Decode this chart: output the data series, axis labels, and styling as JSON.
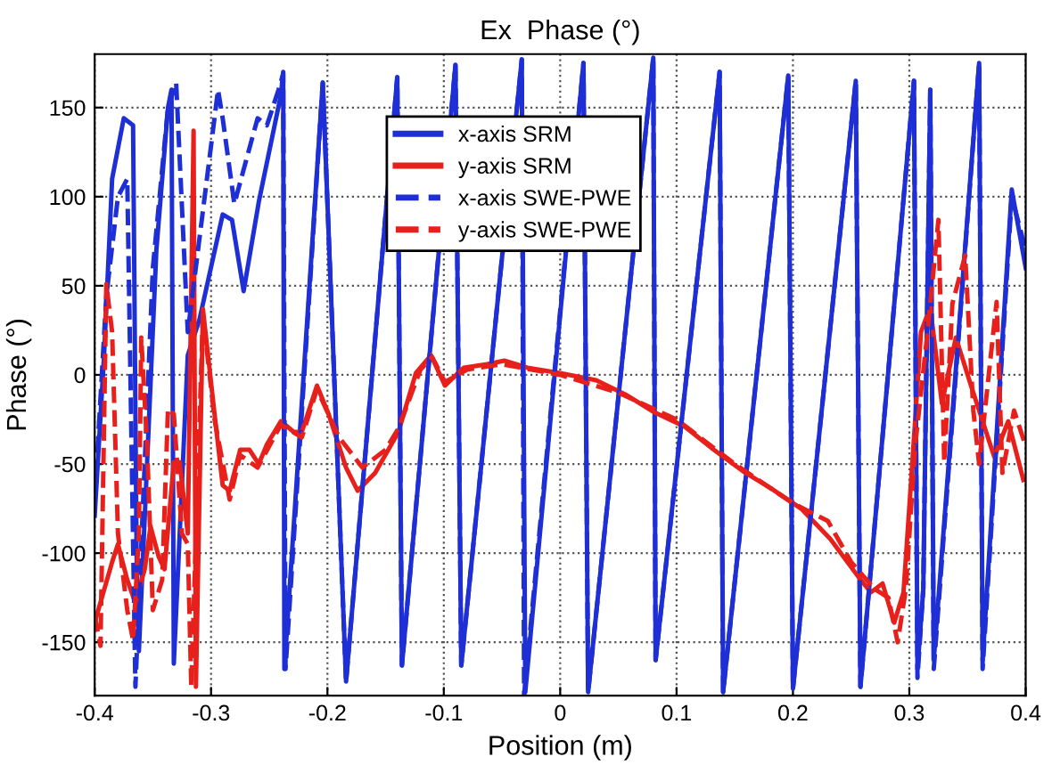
{
  "chart_data": {
    "type": "line",
    "title": "Ex  Phase (°)",
    "xlabel": "Position (m)",
    "ylabel": "Phase (°)",
    "xlim": [
      -0.4,
      0.4
    ],
    "ylim": [
      -180,
      180
    ],
    "xticks": [
      -0.4,
      -0.3,
      -0.2,
      -0.1,
      0,
      0.1,
      0.2,
      0.3,
      0.4
    ],
    "yticks": [
      -150,
      -100,
      -50,
      0,
      50,
      100,
      150
    ],
    "grid": true,
    "legend": "top",
    "marker": "none",
    "series": [
      {
        "name": "x-axis SRM",
        "color": "#1f2fd6",
        "line_style": "solid",
        "x": [
          -0.4,
          -0.392,
          -0.385,
          -0.375,
          -0.367,
          -0.364,
          -0.362,
          -0.347,
          -0.337,
          -0.334,
          -0.332,
          -0.32,
          -0.31,
          -0.29,
          -0.282,
          -0.272,
          -0.259,
          -0.24,
          -0.238,
          -0.237,
          -0.204,
          -0.184,
          -0.14,
          -0.136,
          -0.09,
          -0.085,
          -0.033,
          -0.03,
          0.02,
          0.024,
          0.08,
          0.082,
          0.137,
          0.14,
          0.196,
          0.2,
          0.254,
          0.258,
          0.304,
          0.307,
          0.312,
          0.318,
          0.321,
          0.36,
          0.363,
          0.388,
          0.4
        ],
        "values": [
          -79,
          10,
          110,
          144,
          140,
          -100,
          -155,
          70,
          150,
          160,
          -162,
          11,
          31,
          90,
          87,
          47,
          97,
          157,
          170,
          -165,
          164,
          -172,
          167,
          -163,
          174,
          -163,
          177,
          -178,
          175,
          -178,
          178,
          -160,
          170,
          -178,
          168,
          -176,
          165,
          -175,
          165,
          -165,
          -120,
          160,
          -160,
          175,
          -160,
          104,
          60
        ]
      },
      {
        "name": "y-axis SRM",
        "color": "#e8201c",
        "line_style": "solid",
        "x": [
          -0.4,
          -0.385,
          -0.38,
          -0.372,
          -0.365,
          -0.357,
          -0.352,
          -0.345,
          -0.34,
          -0.332,
          -0.327,
          -0.32,
          -0.315,
          -0.313,
          -0.307,
          -0.297,
          -0.29,
          -0.284,
          -0.275,
          -0.267,
          -0.259,
          -0.252,
          -0.24,
          -0.229,
          -0.222,
          -0.209,
          -0.199,
          -0.184,
          -0.174,
          -0.159,
          -0.139,
          -0.124,
          -0.111,
          -0.099,
          -0.083,
          -0.063,
          -0.048,
          -0.028,
          0,
          0.031,
          0.056,
          0.081,
          0.107,
          0.132,
          0.157,
          0.182,
          0.207,
          0.232,
          0.257,
          0.267,
          0.277,
          0.287,
          0.295,
          0.302,
          0.31,
          0.318,
          0.328,
          0.34,
          0.353,
          0.373,
          0.385,
          0.398
        ],
        "values": [
          -139,
          -105,
          -95,
          -115,
          -128,
          -109,
          -85,
          -102,
          -109,
          -49,
          -49,
          -89,
          137,
          -175,
          37,
          -22,
          -62,
          -65,
          -42,
          -42,
          -50,
          -39,
          -26,
          -32,
          -32,
          -6,
          -22,
          -52,
          -65,
          -55,
          -32,
          1,
          11,
          -6,
          4,
          6,
          8,
          4,
          1,
          -3,
          -11,
          -21,
          -29,
          -42,
          -54,
          -64,
          -75,
          -92,
          -114,
          -122,
          -117,
          -139,
          -122,
          -55,
          24,
          38,
          -16,
          21,
          -6,
          -46,
          -26,
          -59
        ]
      },
      {
        "name": "x-axis SWE-PWE",
        "color": "#1f2fd6",
        "line_style": "dashed",
        "x": [
          -0.4,
          -0.39,
          -0.38,
          -0.372,
          -0.365,
          -0.35,
          -0.337,
          -0.33,
          -0.32,
          -0.294,
          -0.29,
          -0.28,
          -0.26,
          -0.252,
          -0.242,
          -0.238,
          -0.236,
          -0.204,
          -0.184,
          -0.14,
          -0.136,
          -0.09,
          -0.085,
          -0.033,
          -0.031,
          0.02,
          0.024,
          0.08,
          0.082,
          0.137,
          0.14,
          0.196,
          0.2,
          0.254,
          0.258,
          0.304,
          0.307,
          0.312,
          0.318,
          0.321,
          0.36,
          0.363,
          0.388,
          0.4
        ],
        "values": [
          -70,
          44,
          100,
          110,
          -175,
          60,
          150,
          164,
          24,
          160,
          144,
          96,
          144,
          140,
          160,
          169,
          -165,
          164,
          -172,
          167,
          -163,
          174,
          -163,
          177,
          -180,
          175,
          -178,
          178,
          -160,
          170,
          -178,
          168,
          -176,
          165,
          -175,
          165,
          -170,
          -120,
          160,
          -165,
          175,
          -165,
          100,
          70
        ]
      },
      {
        "name": "y-axis SWE-PWE",
        "color": "#e8201c",
        "line_style": "dashed",
        "x": [
          -0.4,
          -0.395,
          -0.39,
          -0.385,
          -0.38,
          -0.372,
          -0.367,
          -0.362,
          -0.36,
          -0.355,
          -0.35,
          -0.342,
          -0.337,
          -0.332,
          -0.325,
          -0.32,
          -0.317,
          -0.307,
          -0.297,
          -0.284,
          -0.275,
          -0.26,
          -0.24,
          -0.222,
          -0.209,
          -0.19,
          -0.17,
          -0.15,
          -0.139,
          -0.12,
          -0.11,
          -0.099,
          -0.08,
          -0.05,
          0,
          0.05,
          0.1,
          0.15,
          0.2,
          0.23,
          0.25,
          0.27,
          0.282,
          0.29,
          0.297,
          0.305,
          0.315,
          0.325,
          0.33,
          0.337,
          0.348,
          0.355,
          0.36,
          0.375,
          0.38,
          0.39,
          0.4
        ],
        "values": [
          -135,
          -152,
          51,
          24,
          -89,
          -132,
          -149,
          -89,
          21,
          -39,
          -132,
          -115,
          -19,
          -22,
          -89,
          -95,
          -175,
          34,
          -25,
          -70,
          -45,
          -52,
          -28,
          -35,
          -8,
          -35,
          -52,
          -42,
          -30,
          3,
          10,
          -4,
          3,
          6,
          0,
          -10,
          -25,
          -50,
          -72,
          -82,
          -105,
          -120,
          -125,
          -150,
          -120,
          -40,
          20,
          87,
          -49,
          40,
          67,
          -20,
          -50,
          41,
          -55,
          -20,
          -40
        ]
      }
    ]
  }
}
